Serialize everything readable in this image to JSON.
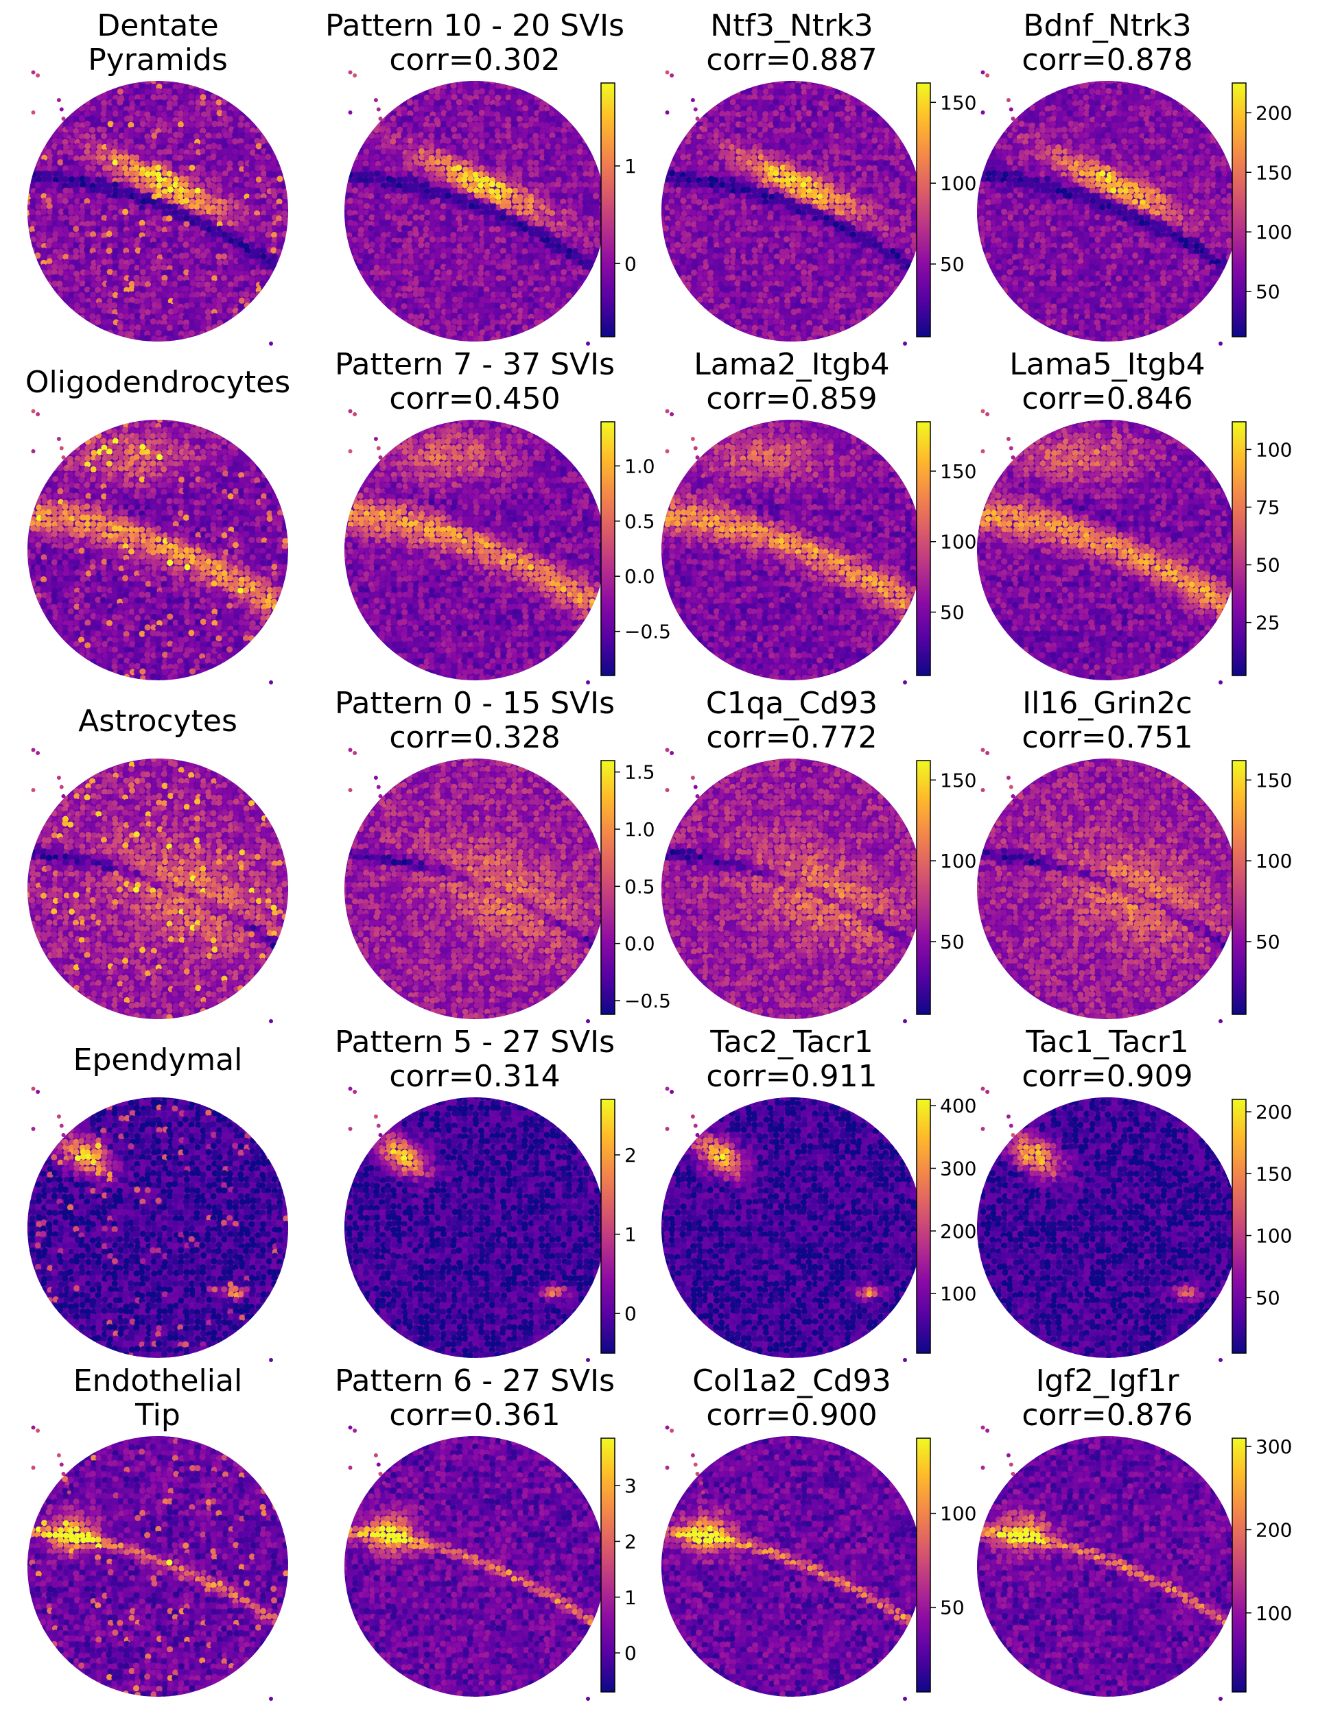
{
  "colormap": [
    "#0d0887",
    "#5302a3",
    "#8b0aa5",
    "#b83289",
    "#db5c68",
    "#f48849",
    "#febc2a",
    "#f0f921"
  ],
  "panels": [
    {
      "row": 0,
      "col": 0,
      "title_lines": [
        "Dentate",
        "Pyramids"
      ],
      "pattern": "pyramid",
      "colorbar": null
    },
    {
      "row": 0,
      "col": 1,
      "title_lines": [
        "Pattern 10 - 20 SVIs",
        "corr=0.302"
      ],
      "pattern": "pyramid",
      "colorbar": {
        "min": -0.75,
        "max": 1.85,
        "ticks": [
          0,
          1
        ],
        "labels": [
          "0",
          "1"
        ]
      }
    },
    {
      "row": 0,
      "col": 2,
      "title_lines": [
        "Ntf3_Ntrk3",
        "corr=0.887"
      ],
      "pattern": "pyramid",
      "colorbar": {
        "min": 5,
        "max": 162,
        "ticks": [
          50,
          100,
          150
        ],
        "labels": [
          "50",
          "100",
          "150"
        ]
      }
    },
    {
      "row": 0,
      "col": 3,
      "title_lines": [
        "Bdnf_Ntrk3",
        "corr=0.878"
      ],
      "pattern": "pyramid",
      "colorbar": {
        "min": 12,
        "max": 225,
        "ticks": [
          50,
          100,
          150,
          200
        ],
        "labels": [
          "50",
          "100",
          "150",
          "200"
        ]
      }
    },
    {
      "row": 1,
      "col": 0,
      "title_lines": [
        "Oligodendrocytes"
      ],
      "pattern": "oligo",
      "colorbar": null
    },
    {
      "row": 1,
      "col": 1,
      "title_lines": [
        "Pattern 7 - 37 SVIs",
        "corr=0.450"
      ],
      "pattern": "oligo",
      "colorbar": {
        "min": -0.9,
        "max": 1.4,
        "ticks": [
          -0.5,
          0,
          0.5,
          1
        ],
        "labels": [
          "−0.5",
          "0.0",
          "0.5",
          "1.0"
        ]
      }
    },
    {
      "row": 1,
      "col": 2,
      "title_lines": [
        "Lama2_Itgb4",
        "corr=0.859"
      ],
      "pattern": "oligo",
      "colorbar": {
        "min": 5,
        "max": 185,
        "ticks": [
          50,
          100,
          150
        ],
        "labels": [
          "50",
          "100",
          "150"
        ]
      }
    },
    {
      "row": 1,
      "col": 3,
      "title_lines": [
        "Lama5_Itgb4",
        "corr=0.846"
      ],
      "pattern": "oligo",
      "colorbar": {
        "min": 2,
        "max": 112,
        "ticks": [
          25,
          50,
          75,
          100
        ],
        "labels": [
          "25",
          "50",
          "75",
          "100"
        ]
      }
    },
    {
      "row": 2,
      "col": 0,
      "title_lines": [
        "Astrocytes"
      ],
      "pattern": "astro",
      "colorbar": null
    },
    {
      "row": 2,
      "col": 1,
      "title_lines": [
        "Pattern 0 - 15 SVIs",
        "corr=0.328"
      ],
      "pattern": "astro",
      "colorbar": {
        "min": -0.62,
        "max": 1.6,
        "ticks": [
          -0.5,
          0,
          0.5,
          1,
          1.5
        ],
        "labels": [
          "−0.5",
          "0.0",
          "0.5",
          "1.0",
          "1.5"
        ]
      }
    },
    {
      "row": 2,
      "col": 2,
      "title_lines": [
        "C1qa_Cd93",
        "corr=0.772"
      ],
      "pattern": "astro",
      "colorbar": {
        "min": 5,
        "max": 162,
        "ticks": [
          50,
          100,
          150
        ],
        "labels": [
          "50",
          "100",
          "150"
        ]
      }
    },
    {
      "row": 2,
      "col": 3,
      "title_lines": [
        "Il16_Grin2c",
        "corr=0.751"
      ],
      "pattern": "astro",
      "colorbar": {
        "min": 5,
        "max": 162,
        "ticks": [
          50,
          100,
          150
        ],
        "labels": [
          "50",
          "100",
          "150"
        ]
      }
    },
    {
      "row": 3,
      "col": 0,
      "title_lines": [
        "Ependymal"
      ],
      "pattern": "ependymal",
      "colorbar": null
    },
    {
      "row": 3,
      "col": 1,
      "title_lines": [
        "Pattern 5 - 27 SVIs",
        "corr=0.314"
      ],
      "pattern": "ependymal",
      "colorbar": {
        "min": -0.5,
        "max": 2.7,
        "ticks": [
          0,
          1,
          2
        ],
        "labels": [
          "0",
          "1",
          "2"
        ]
      }
    },
    {
      "row": 3,
      "col": 2,
      "title_lines": [
        "Tac2_Tacr1",
        "corr=0.911"
      ],
      "pattern": "ependymal",
      "colorbar": {
        "min": 5,
        "max": 410,
        "ticks": [
          100,
          200,
          300,
          400
        ],
        "labels": [
          "100",
          "200",
          "300",
          "400"
        ]
      }
    },
    {
      "row": 3,
      "col": 3,
      "title_lines": [
        "Tac1_Tacr1",
        "corr=0.909"
      ],
      "pattern": "ependymal",
      "colorbar": {
        "min": 5,
        "max": 210,
        "ticks": [
          50,
          100,
          150,
          200
        ],
        "labels": [
          "50",
          "100",
          "150",
          "200"
        ]
      }
    },
    {
      "row": 4,
      "col": 0,
      "title_lines": [
        "Endothelial",
        "Tip"
      ],
      "pattern": "endo",
      "colorbar": null
    },
    {
      "row": 4,
      "col": 1,
      "title_lines": [
        "Pattern 6 - 27 SVIs",
        "corr=0.361"
      ],
      "pattern": "endo",
      "colorbar": {
        "min": -0.7,
        "max": 3.85,
        "ticks": [
          0,
          1,
          2,
          3
        ],
        "labels": [
          "0",
          "1",
          "2",
          "3"
        ]
      }
    },
    {
      "row": 4,
      "col": 2,
      "title_lines": [
        "Col1a2_Cd93",
        "corr=0.900"
      ],
      "pattern": "endo",
      "colorbar": {
        "min": 5,
        "max": 140,
        "ticks": [
          50,
          100
        ],
        "labels": [
          "50",
          "100"
        ]
      }
    },
    {
      "row": 4,
      "col": 3,
      "title_lines": [
        "Igf2_Igf1r",
        "corr=0.876"
      ],
      "pattern": "endo",
      "colorbar": {
        "min": 5,
        "max": 310,
        "ticks": [
          100,
          200,
          300
        ],
        "labels": [
          "100",
          "200",
          "300"
        ]
      }
    }
  ]
}
